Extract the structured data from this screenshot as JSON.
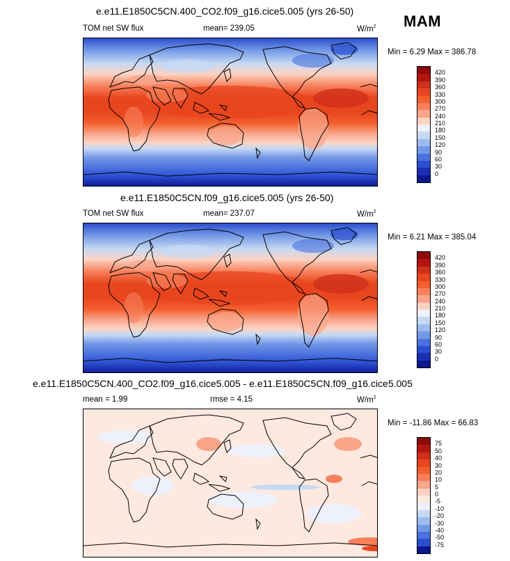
{
  "season": "MAM",
  "panels": [
    {
      "title": "e.e11.E1850C5CN.400_CO2.f09_g16.cice5.005 (yrs 26-50)",
      "left_label": "TOM net SW flux",
      "center_label": "mean= 239.05",
      "units": "W/m",
      "units_sup": "2",
      "minmax": "Min =   6.29 Max = 386.78",
      "cbar_labels": [
        "420",
        "390",
        "360",
        "330",
        "300",
        "270",
        "240",
        "210",
        "180",
        "150",
        "120",
        "90",
        "60",
        "30",
        "0"
      ],
      "cbar_colors": [
        "#8b0b0b",
        "#b3160f",
        "#d0301a",
        "#e8461f",
        "#f45f2e",
        "#f7805b",
        "#f9a58a",
        "#fcd3c2",
        "#eef0fb",
        "#c6d9f3",
        "#9bbcec",
        "#7399e6",
        "#4b71de",
        "#2b4ed0",
        "#1a2fb5",
        "#0b188f"
      ],
      "map_style": "field"
    },
    {
      "title": "e.e11.E1850C5CN.f09_g16.cice5.005 (yrs 26-50)",
      "left_label": "TOM net SW flux",
      "center_label": "mean= 237.07",
      "units": "W/m",
      "units_sup": "2",
      "minmax": "Min =   6.21 Max = 385.04",
      "cbar_labels": [
        "420",
        "390",
        "360",
        "330",
        "300",
        "270",
        "240",
        "210",
        "180",
        "150",
        "120",
        "90",
        "60",
        "30",
        "0"
      ],
      "cbar_colors": [
        "#8b0b0b",
        "#b3160f",
        "#d0301a",
        "#e8461f",
        "#f45f2e",
        "#f7805b",
        "#f9a58a",
        "#fcd3c2",
        "#eef0fb",
        "#c6d9f3",
        "#9bbcec",
        "#7399e6",
        "#4b71de",
        "#2b4ed0",
        "#1a2fb5",
        "#0b188f"
      ],
      "map_style": "field"
    },
    {
      "title": "e.e11.E1850C5CN.400_CO2.f09_g16.cice5.005 - e.e11.E1850C5CN.f09_g16.cice5.005",
      "left_label": "mean =   1.99",
      "center_label": "rmse =   4.15",
      "units": "W/m",
      "units_sup": "2",
      "minmax": "Min = -11.86 Max =  66.83",
      "cbar_labels": [
        "75",
        "50",
        "40",
        "30",
        "20",
        "10",
        "5",
        "0",
        "-5",
        "-10",
        "-20",
        "-30",
        "-40",
        "-50",
        "-75"
      ],
      "cbar_colors": [
        "#8b0b0b",
        "#b3160f",
        "#d0301a",
        "#e8461f",
        "#f45f2e",
        "#f7805b",
        "#f9a58a",
        "#fcd3c2",
        "#fde9df",
        "#eef0fb",
        "#c6d9f3",
        "#9bbcec",
        "#7399e6",
        "#4b71de",
        "#2b4ed0",
        "#0b188f"
      ],
      "map_style": "diff"
    }
  ],
  "chart_data": [
    {
      "type": "heatmap",
      "title": "e.e11.E1850C5CN.400_CO2.f09_g16.cice5.005 (yrs 26-50)",
      "field": "TOM net SW flux",
      "units": "W/m2",
      "mean": 239.05,
      "min": 6.29,
      "max": 386.78,
      "levels": [
        0,
        30,
        60,
        90,
        120,
        150,
        180,
        210,
        240,
        270,
        300,
        330,
        360,
        390,
        420
      ]
    },
    {
      "type": "heatmap",
      "title": "e.e11.E1850C5CN.f09_g16.cice5.005 (yrs 26-50)",
      "field": "TOM net SW flux",
      "units": "W/m2",
      "mean": 237.07,
      "min": 6.21,
      "max": 385.04,
      "levels": [
        0,
        30,
        60,
        90,
        120,
        150,
        180,
        210,
        240,
        270,
        300,
        330,
        360,
        390,
        420
      ]
    },
    {
      "type": "heatmap",
      "title": "e.e11.E1850C5CN.400_CO2.f09_g16.cice5.005 - e.e11.E1850C5CN.f09_g16.cice5.005",
      "units": "W/m2",
      "mean": 1.99,
      "rmse": 4.15,
      "min": -11.86,
      "max": 66.83,
      "levels": [
        -75,
        -50,
        -40,
        -30,
        -20,
        -10,
        -5,
        0,
        5,
        10,
        20,
        30,
        40,
        50,
        75
      ]
    }
  ]
}
